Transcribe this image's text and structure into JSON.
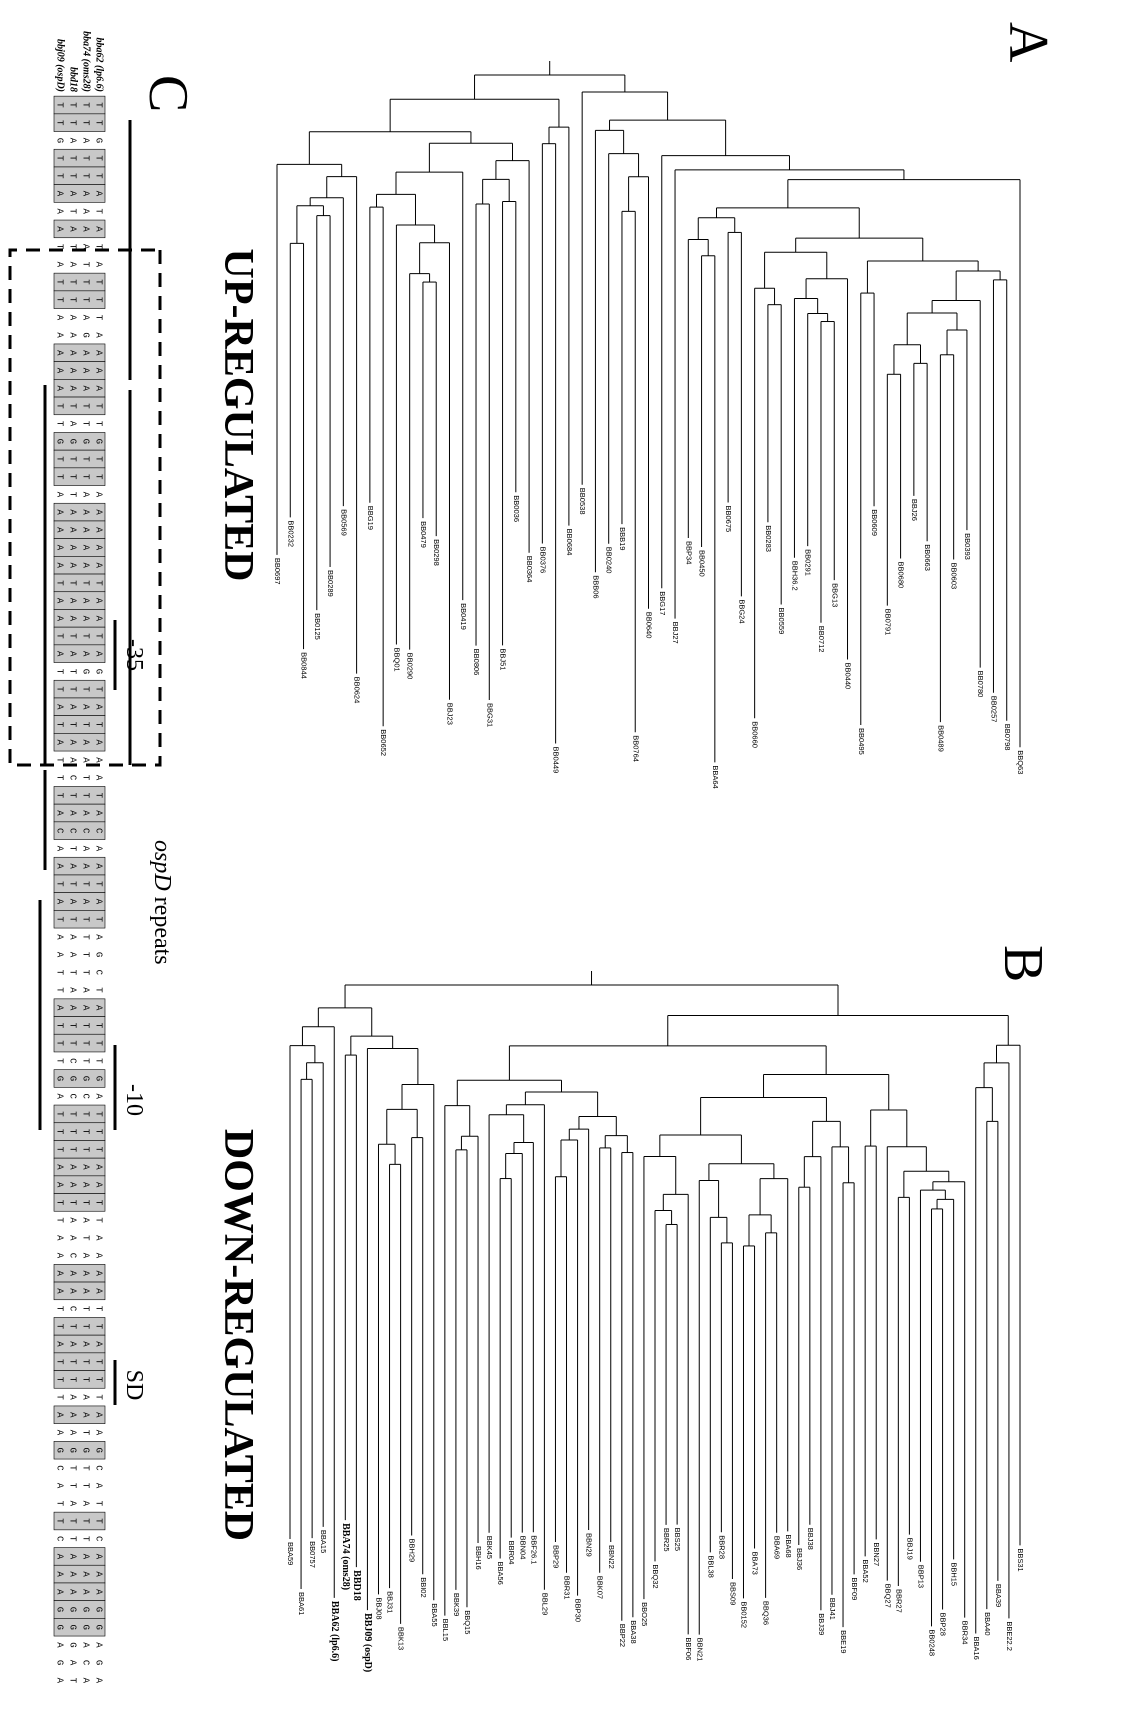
{
  "panels": [
    {
      "label": "A",
      "title": "UP-REGULATED",
      "leaves": [
        {
          "id": "BBQ63"
        },
        {
          "id": "BB0798"
        },
        {
          "id": "BB0257"
        },
        {
          "id": "BB0780"
        },
        {
          "id": "BB0393"
        },
        {
          "id": "BB0603"
        },
        {
          "id": "BB0489"
        },
        {
          "id": "BB0663"
        },
        {
          "id": "BBJ26"
        },
        {
          "id": "BB0680"
        },
        {
          "id": "BB0791"
        },
        {
          "id": "BB0609"
        },
        {
          "id": "BB0495"
        },
        {
          "id": "BB0440"
        },
        {
          "id": "BBG13"
        },
        {
          "id": "BB0712"
        },
        {
          "id": "BB0291"
        },
        {
          "id": "BBH36.2"
        },
        {
          "id": "BB0559"
        },
        {
          "id": "BB0283"
        },
        {
          "id": "BB0660"
        },
        {
          "id": "BBG24"
        },
        {
          "id": "BB0675"
        },
        {
          "id": "BBA64"
        },
        {
          "id": "BB0450"
        },
        {
          "id": "BBP34"
        },
        {
          "id": "BBJ27"
        },
        {
          "id": "BBG17"
        },
        {
          "id": "BB0640"
        },
        {
          "id": "BB0764"
        },
        {
          "id": "BBB19"
        },
        {
          "id": "BB0240"
        },
        {
          "id": "BBB06"
        },
        {
          "id": "BB0538"
        },
        {
          "id": "BB0684"
        },
        {
          "id": "BB0449"
        },
        {
          "id": "BB0376"
        },
        {
          "id": "BB0364"
        },
        {
          "id": "BB0036"
        },
        {
          "id": "BBJ51"
        },
        {
          "id": "BBG31"
        },
        {
          "id": "BB0806"
        },
        {
          "id": "BB0419"
        },
        {
          "id": "BBJ23"
        },
        {
          "id": "BB0298"
        },
        {
          "id": "BB0479"
        },
        {
          "id": "BB0290"
        },
        {
          "id": "BBQ01"
        },
        {
          "id": "BB0652"
        },
        {
          "id": "BBG19"
        },
        {
          "id": "BB0624"
        },
        {
          "id": "BB0569"
        },
        {
          "id": "BB0289"
        },
        {
          "id": "BB0125"
        },
        {
          "id": "BB0844"
        },
        {
          "id": "BB0232"
        },
        {
          "id": "BB0697"
        }
      ]
    },
    {
      "label": "B",
      "title": "DOWN-REGULATED",
      "leaves": [
        {
          "id": "BBS31"
        },
        {
          "id": "BBE22.2"
        },
        {
          "id": "BBA39"
        },
        {
          "id": "BBA40"
        },
        {
          "id": "BBA16"
        },
        {
          "id": "BBR34"
        },
        {
          "id": "BBH15"
        },
        {
          "id": "BBP28"
        },
        {
          "id": "BB0248"
        },
        {
          "id": "BBP13"
        },
        {
          "id": "BBJ19"
        },
        {
          "id": "BBR27"
        },
        {
          "id": "BBQ27"
        },
        {
          "id": "BBN27"
        },
        {
          "id": "BBA52"
        },
        {
          "id": "BBF09"
        },
        {
          "id": "BBE19"
        },
        {
          "id": "BBJ41"
        },
        {
          "id": "BBJ39"
        },
        {
          "id": "BBJ38"
        },
        {
          "id": "BBJ36"
        },
        {
          "id": "BBA68"
        },
        {
          "id": "BBA69"
        },
        {
          "id": "BBQ36"
        },
        {
          "id": "BBA73"
        },
        {
          "id": "BB0152"
        },
        {
          "id": "BBS09"
        },
        {
          "id": "BBR28"
        },
        {
          "id": "BBL38"
        },
        {
          "id": "BBN21"
        },
        {
          "id": "BBF06"
        },
        {
          "id": "BBS25"
        },
        {
          "id": "BBR25"
        },
        {
          "id": "BBQ32"
        },
        {
          "id": "BBO25"
        },
        {
          "id": "BBA38"
        },
        {
          "id": "BBP22"
        },
        {
          "id": "BBN22"
        },
        {
          "id": "BBK07"
        },
        {
          "id": "BBN29"
        },
        {
          "id": "BBP30"
        },
        {
          "id": "BBR31"
        },
        {
          "id": "BBP29"
        },
        {
          "id": "BBL29"
        },
        {
          "id": "BBF26.1"
        },
        {
          "id": "BBN04"
        },
        {
          "id": "BBR04"
        },
        {
          "id": "BBA56"
        },
        {
          "id": "BBK45"
        },
        {
          "id": "BBH16"
        },
        {
          "id": "BBQ15"
        },
        {
          "id": "BBK39"
        },
        {
          "id": "BBL15"
        },
        {
          "id": "BBA55"
        },
        {
          "id": "BBI02"
        },
        {
          "id": "BBH29"
        },
        {
          "id": "BBK13"
        },
        {
          "id": "BBJ31"
        },
        {
          "id": "BBJ08"
        },
        {
          "id": "BBJ09 (ospD)",
          "bold": true
        },
        {
          "id": "BBD18",
          "bold": true
        },
        {
          "id": "BBA74 (oms28)",
          "bold": true
        },
        {
          "id": "BBA62 (lp6.6)",
          "bold": true
        },
        {
          "id": "BBA15"
        },
        {
          "id": "BB0757"
        },
        {
          "id": "BBA61"
        },
        {
          "id": "BBA59"
        }
      ]
    }
  ],
  "alignment": {
    "label": "C",
    "rows": [
      {
        "name": "bba62 (lp6.6)",
        "sequence": "TTGTTATATATTTAAAATTGTTAAAAATAATAGTATAAATACAATATAGCTATTTGATTTAATTAAAATTATTTAAGCATTCAAAGGAGA"
      },
      {
        "name": "bba74 (oms28)",
        "sequence": "TTATTAAAATTTAGAAATTGTTAAAAATAATAGTATAATTACAATATTTTAATTTGCTTTAATATAAATTATTAATGTTATTAAAGGACA"
      },
      {
        "name": "bbd18",
        "sequence": "TTATTATATATTAAAAATAGTTTAAAATAATATTATAACTACTATATAATAATTCGCTTTAATAACAACTATTAAAGTTATTAAAGGGAT"
      },
      {
        "name": "bbj09 (ospD)",
        "sequence": "TTGTTAAATATTAAAAATTGTTAAAAATAATATTATATTTACAATATAATTATTTGATTTAATTAAAATTATTTAAGCATTCAAAGGAGA"
      }
    ],
    "annotations": [
      "-35",
      "-10",
      "SD"
    ],
    "caption": {
      "gene": "ospD",
      "text": "repeats"
    }
  }
}
